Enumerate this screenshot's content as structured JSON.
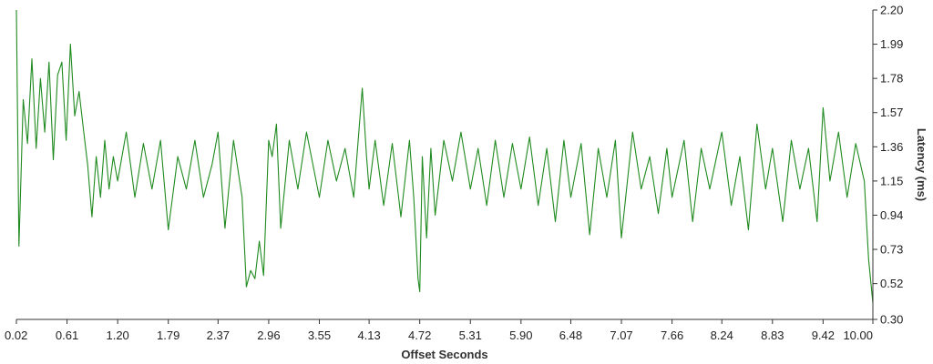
{
  "chart_data": {
    "type": "line",
    "xlabel": "Offset Seconds",
    "ylabel": "Latency (ms)",
    "xlim": [
      0.02,
      10.0
    ],
    "ylim": [
      0.3,
      2.2
    ],
    "x_ticks": [
      "0.02",
      "0.61",
      "1.20",
      "1.79",
      "2.37",
      "2.96",
      "3.55",
      "4.13",
      "4.72",
      "5.31",
      "5.90",
      "6.48",
      "7.07",
      "7.66",
      "8.24",
      "8.83",
      "9.42",
      "10.00"
    ],
    "y_ticks": [
      "2.20",
      "1.99",
      "1.78",
      "1.57",
      "1.36",
      "1.15",
      "0.94",
      "0.73",
      "0.52",
      "0.30"
    ],
    "y_axis_side": "right",
    "grid": false,
    "color": "#1f8a1f",
    "series": [
      {
        "x": [
          0.02,
          0.05,
          0.1,
          0.15,
          0.2,
          0.25,
          0.3,
          0.35,
          0.4,
          0.45,
          0.5,
          0.55,
          0.6,
          0.65,
          0.7,
          0.75,
          0.8,
          0.85,
          0.9,
          0.95,
          1.0,
          1.05,
          1.1,
          1.15,
          1.2,
          1.3,
          1.4,
          1.5,
          1.6,
          1.7,
          1.79,
          1.9,
          2.0,
          2.1,
          2.2,
          2.3,
          2.37,
          2.45,
          2.55,
          2.65,
          2.7,
          2.75,
          2.8,
          2.85,
          2.9,
          2.96,
          3.0,
          3.05,
          3.1,
          3.2,
          3.3,
          3.4,
          3.55,
          3.65,
          3.75,
          3.85,
          3.95,
          4.05,
          4.1,
          4.13,
          4.2,
          4.3,
          4.4,
          4.5,
          4.6,
          4.65,
          4.7,
          4.72,
          4.75,
          4.8,
          4.85,
          4.9,
          5.0,
          5.1,
          5.2,
          5.31,
          5.4,
          5.5,
          5.6,
          5.7,
          5.8,
          5.9,
          6.0,
          6.1,
          6.2,
          6.3,
          6.4,
          6.48,
          6.6,
          6.7,
          6.8,
          6.9,
          7.0,
          7.07,
          7.2,
          7.3,
          7.4,
          7.5,
          7.6,
          7.66,
          7.8,
          7.9,
          8.0,
          8.1,
          8.24,
          8.35,
          8.45,
          8.55,
          8.65,
          8.75,
          8.83,
          8.95,
          9.05,
          9.15,
          9.25,
          9.35,
          9.42,
          9.5,
          9.6,
          9.7,
          9.8,
          9.9,
          9.95,
          10.0
        ],
        "y": [
          2.2,
          0.75,
          1.65,
          1.38,
          1.9,
          1.35,
          1.78,
          1.45,
          1.88,
          1.28,
          1.8,
          1.88,
          1.4,
          1.99,
          1.55,
          1.7,
          1.47,
          1.25,
          0.93,
          1.3,
          1.05,
          1.4,
          1.1,
          1.3,
          1.15,
          1.45,
          1.05,
          1.38,
          1.1,
          1.4,
          0.85,
          1.3,
          1.1,
          1.4,
          1.05,
          1.25,
          1.45,
          0.86,
          1.4,
          1.05,
          0.5,
          0.6,
          0.55,
          0.78,
          0.57,
          1.4,
          1.3,
          1.5,
          0.86,
          1.4,
          1.1,
          1.45,
          1.05,
          1.4,
          1.15,
          1.35,
          1.05,
          1.72,
          1.3,
          1.1,
          1.4,
          1.0,
          1.38,
          0.93,
          1.4,
          1.05,
          0.55,
          0.47,
          1.3,
          0.8,
          1.35,
          0.94,
          1.4,
          1.15,
          1.45,
          1.1,
          1.35,
          1.0,
          1.4,
          1.05,
          1.38,
          1.1,
          1.42,
          1.0,
          1.35,
          0.9,
          1.4,
          1.05,
          1.38,
          0.82,
          1.35,
          1.05,
          1.4,
          0.8,
          1.45,
          1.1,
          1.3,
          0.95,
          1.35,
          1.05,
          1.4,
          0.9,
          1.35,
          1.1,
          1.45,
          1.0,
          1.3,
          0.85,
          1.5,
          1.1,
          1.35,
          0.9,
          1.4,
          1.1,
          1.35,
          0.9,
          1.6,
          1.15,
          1.45,
          1.05,
          1.38,
          1.15,
          0.67,
          0.4
        ]
      }
    ]
  }
}
